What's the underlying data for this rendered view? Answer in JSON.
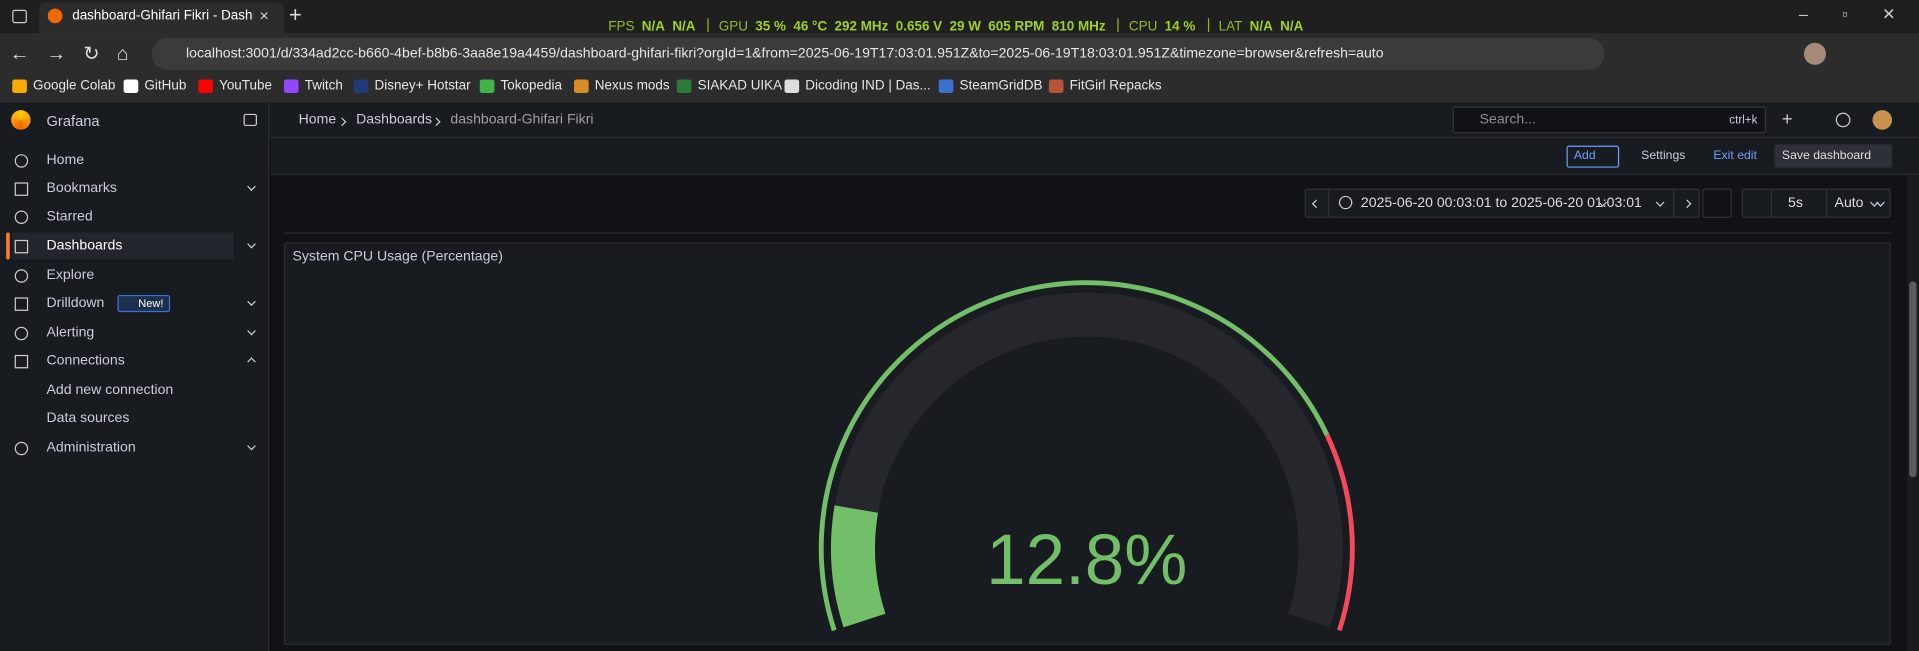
{
  "browser": {
    "tab_title": "dashboard-Ghifari Fikri - Dashbo",
    "url": "localhost:3001/d/334ad2cc-b660-4bef-b8b6-3aa8e19a4459/dashboard-ghifari-fikri?orgId=1&from=2025-06-19T17:03:01.951Z&to=2025-06-19T18:03:01.951Z&timezone=browser&refresh=auto",
    "bookmarks": [
      "Google Colab",
      "GitHub",
      "YouTube",
      "Twitch",
      "Disney+ Hotstar",
      "Tokopedia",
      "Nexus mods",
      "SIAKAD UIKA",
      "Dicoding IND | Das...",
      "SteamGridDB",
      "FitGirl Repacks"
    ]
  },
  "overlay": [
    {
      "label": "FPS",
      "values": [
        "N/A",
        "N/A"
      ]
    },
    {
      "label": "GPU",
      "values": [
        "35 %",
        "46 °C",
        "292 MHz",
        "0.656 V",
        "29 W",
        "605 RPM",
        "810 MHz"
      ]
    },
    {
      "label": "CPU",
      "values": [
        "14 %"
      ]
    },
    {
      "label": "LAT",
      "values": [
        "N/A",
        "N/A"
      ]
    }
  ],
  "sidebar": {
    "brand": "Grafana",
    "items": [
      "Home",
      "Bookmarks",
      "Starred",
      "Dashboards",
      "Explore",
      "Drilldown",
      "Alerting",
      "Connections",
      "Add new connection",
      "Data sources",
      "Administration"
    ],
    "badge": "New!"
  },
  "header": {
    "breadcrumbs": [
      "Home",
      "Dashboards",
      "dashboard-Ghifari Fikri"
    ],
    "search": "Search...",
    "shortcut": "ctrl+k"
  },
  "toolbar": {
    "add": "Add",
    "settings": "Settings",
    "exit": "Exit edit",
    "save": "Save dashboard"
  },
  "timepicker": {
    "range": "2025-06-20 00:03:01 to 2025-06-20 01:03:01",
    "interval": "5s",
    "refresh": "Auto"
  },
  "panel": {
    "title": "System CPU Usage (Percentage)",
    "gauge": {
      "value": 12.8,
      "value_label": "12.8%",
      "min": 0,
      "max": 100,
      "threshold": 80,
      "color": "#73bf69",
      "threshold_color": "#f2495c"
    }
  }
}
